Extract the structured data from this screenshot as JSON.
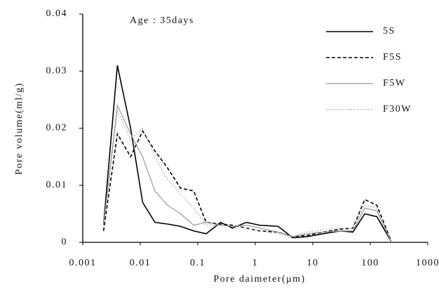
{
  "chart_data": {
    "type": "line",
    "annotation": "Age : 35days",
    "xlabel": "Pore daimeter(μm)",
    "ylabel": "Pore volume(ml/g)",
    "xscale": "log",
    "xlim": [
      0.001,
      1000
    ],
    "xticks": [
      0.001,
      0.01,
      0.1,
      1,
      10,
      100,
      1000
    ],
    "ylim": [
      0,
      0.04
    ],
    "yticks": [
      0,
      0.01,
      0.02,
      0.03,
      0.04
    ],
    "legend": "upper right",
    "x": [
      0.0023,
      0.004,
      0.0068,
      0.011,
      0.018,
      0.03,
      0.05,
      0.085,
      0.14,
      0.25,
      0.4,
      0.7,
      1.2,
      2.5,
      4.5,
      8,
      15,
      30,
      50,
      80,
      130,
      230
    ],
    "series": [
      {
        "name": "5S",
        "color": "#000000",
        "dash": "solid",
        "values": [
          0.003,
          0.031,
          0.02,
          0.007,
          0.0035,
          0.0032,
          0.0028,
          0.002,
          0.0015,
          0.0035,
          0.0025,
          0.0035,
          0.003,
          0.0028,
          0.0008,
          0.001,
          0.0015,
          0.002,
          0.0018,
          0.005,
          0.0045,
          0.0002
        ]
      },
      {
        "name": "F5S",
        "color": "#000000",
        "dash": "dashed",
        "values": [
          0.002,
          0.019,
          0.015,
          0.0195,
          0.016,
          0.013,
          0.0095,
          0.009,
          0.0035,
          0.0032,
          0.003,
          0.0025,
          0.002,
          0.0018,
          0.001,
          0.0012,
          0.0018,
          0.0023,
          0.0025,
          0.0075,
          0.0065,
          0.0003
        ]
      },
      {
        "name": "F5W",
        "color": "#999999",
        "dash": "solid",
        "values": [
          0.003,
          0.024,
          0.019,
          0.015,
          0.009,
          0.0065,
          0.005,
          0.003,
          0.0035,
          0.003,
          0.0028,
          0.003,
          0.0025,
          0.0018,
          0.001,
          0.0015,
          0.0018,
          0.002,
          0.002,
          0.006,
          0.0055,
          0.0002
        ]
      },
      {
        "name": "F30W",
        "color": "#999999",
        "dash": "dotted",
        "values": [
          0.003,
          0.023,
          0.018,
          0.02,
          0.015,
          0.011,
          0.0085,
          0.006,
          0.003,
          0.003,
          0.0028,
          0.0025,
          0.002,
          0.0015,
          0.001,
          0.0018,
          0.0022,
          0.0025,
          0.0025,
          0.0065,
          0.006,
          0.0003
        ]
      }
    ]
  }
}
